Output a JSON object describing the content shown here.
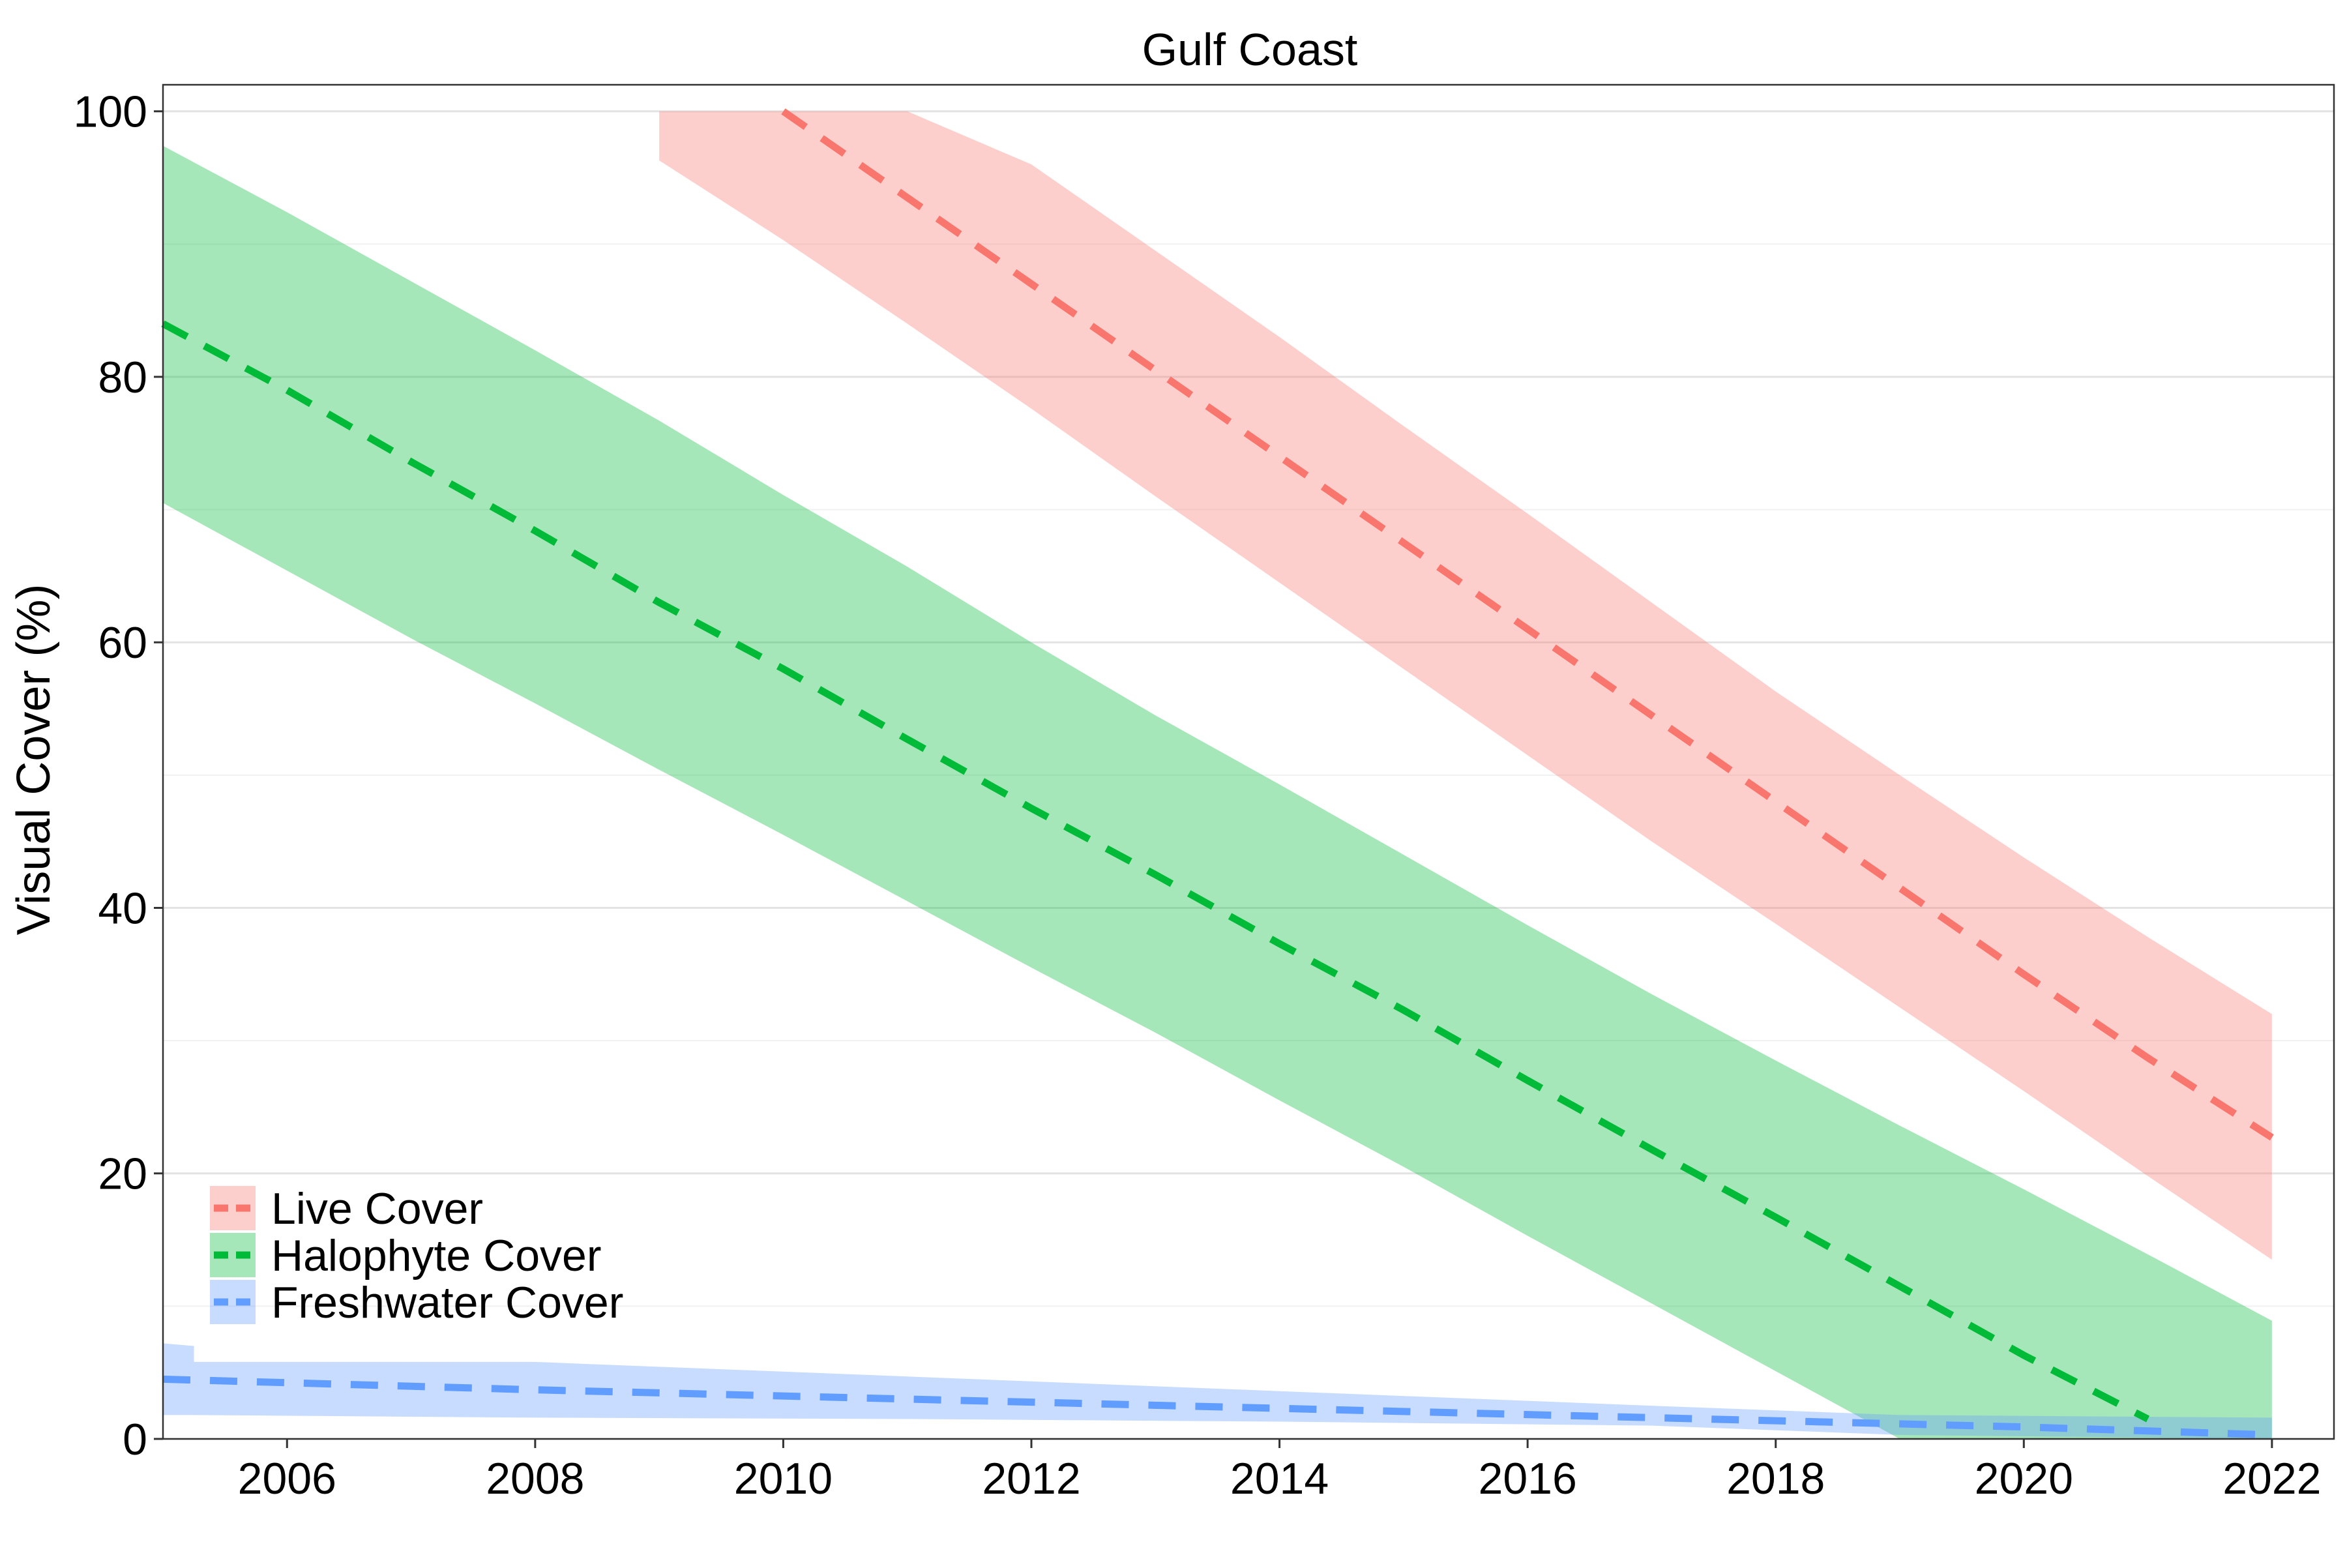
{
  "chart_data": {
    "type": "line",
    "title": "Gulf Coast",
    "xlabel": "",
    "ylabel": "Visual Cover (%)",
    "xlim": [
      2005,
      2022.5
    ],
    "ylim": [
      0,
      102
    ],
    "x_ticks": [
      2006,
      2008,
      2010,
      2012,
      2014,
      2016,
      2018,
      2020,
      2022
    ],
    "y_ticks": [
      0,
      20,
      40,
      60,
      80,
      100
    ],
    "grid": "horizontal",
    "legend_position": "bottom-left",
    "series": [
      {
        "name": "Live Cover",
        "line_color": "#F8766D",
        "ribbon_color": "#F8766D",
        "line_style": "dashed",
        "x": [
          2010,
          2011,
          2012,
          2013,
          2014,
          2015,
          2016,
          2017,
          2018,
          2019,
          2020,
          2021,
          2022
        ],
        "y": [
          100,
          93.5,
          87,
          80.5,
          74,
          67.5,
          61,
          54.5,
          48,
          41.5,
          35,
          28.7,
          22.7
        ],
        "ribbon_x": [
          2009,
          2010,
          2011,
          2012,
          2013,
          2014,
          2015,
          2016,
          2017,
          2018,
          2019,
          2020,
          2021,
          2022
        ],
        "ribbon_lower": [
          96.3,
          90.3,
          84,
          77.6,
          71,
          64.5,
          58,
          51.5,
          45,
          38.8,
          32.5,
          26.2,
          19.8,
          13.5
        ],
        "ribbon_upper": [
          100,
          100,
          100,
          96,
          89.5,
          83,
          76.3,
          69.7,
          63,
          56.3,
          50,
          43.8,
          37.8,
          32
        ]
      },
      {
        "name": "Halophyte Cover",
        "line_color": "#00BA38",
        "ribbon_color": "#00BA38",
        "line_style": "dashed",
        "x": [
          2005,
          2006,
          2007,
          2008,
          2009,
          2010,
          2011,
          2012,
          2013,
          2014,
          2015,
          2016,
          2017,
          2018,
          2019,
          2020,
          2021
        ],
        "y": [
          84,
          79,
          73.6,
          68.4,
          63,
          58,
          52.7,
          47.5,
          42.5,
          37.3,
          32.3,
          27,
          21.8,
          16.7,
          11.5,
          6.3,
          1.5
        ],
        "ribbon_x": [
          2005,
          2006,
          2007,
          2008,
          2009,
          2010,
          2011,
          2012,
          2013,
          2014,
          2015,
          2016,
          2017,
          2018,
          2019,
          2020,
          2021,
          2022
        ],
        "ribbon_lower": [
          70.5,
          65.4,
          60.3,
          55.4,
          50.4,
          45.5,
          40.5,
          35.5,
          30.6,
          25.5,
          20.5,
          15.3,
          10.2,
          5.1,
          0,
          0,
          0,
          0
        ],
        "ribbon_upper": [
          97.4,
          92.4,
          87.2,
          82,
          76.7,
          71.1,
          65.7,
          60,
          54.5,
          49.3,
          44,
          38.7,
          33.5,
          28.5,
          23.6,
          18.8,
          13.9,
          8.9
        ]
      },
      {
        "name": "Freshwater Cover",
        "line_color": "#619CFF",
        "ribbon_color": "#619CFF",
        "line_style": "dashed",
        "x": [
          2005,
          2008,
          2011,
          2014,
          2017,
          2020,
          2022
        ],
        "y": [
          4.5,
          3.7,
          3,
          2.3,
          1.6,
          0.9,
          0.3
        ],
        "ribbon_x": [
          2005,
          2005.25,
          2005.25,
          2008,
          2011,
          2014,
          2017,
          2019,
          2022
        ],
        "ribbon_lower": [
          1.8,
          1.8,
          1.8,
          1.6,
          1.5,
          1.3,
          1,
          0.3,
          0
        ],
        "ribbon_upper": [
          7.2,
          7,
          5.8,
          5.8,
          4.7,
          3.6,
          2.5,
          1.8,
          1.6
        ]
      }
    ]
  }
}
